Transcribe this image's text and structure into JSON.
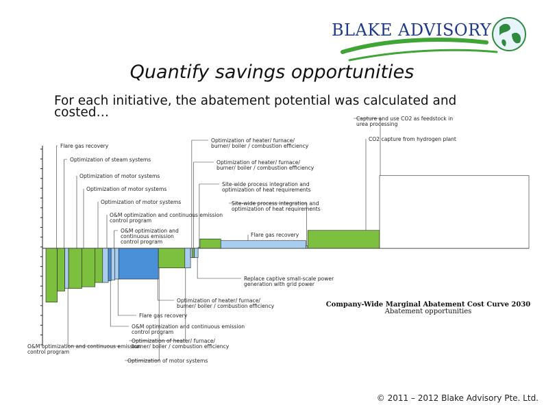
{
  "slide": {
    "title": "Quantify savings opportunities",
    "subtitle": "For each initiative, the abatement potential was calculated and costed…",
    "copyright": "© 2011 – 2012 Blake Advisory Pte. Ltd."
  },
  "logo": {
    "text": "BLAKE ADVISORY",
    "icon": "globe-icon",
    "colors": {
      "text": "#1f3a8a",
      "swoosh": "#3fa535",
      "globe": "#2e8b3d"
    }
  },
  "colors": {
    "green": "#7dbf3f",
    "blue": "#4a90d9",
    "light_blue": "#a9cdee",
    "outline": "#222222"
  },
  "chart_data": {
    "type": "bar",
    "variant": "marginal-abatement-cost-curve",
    "title": "Company-Wide Marginal Abatement Cost Curve 2030",
    "subtitle": "Abatement opportunities",
    "xlabel": "",
    "ylabel": "",
    "ylim": [
      -100,
      100
    ],
    "grid": false,
    "bars": [
      {
        "label": "Flare gas recovery",
        "width": 6,
        "cost": -63,
        "color": "green"
      },
      {
        "label": "Optimization of steam systems",
        "width": 4,
        "cost": -50,
        "color": "green"
      },
      {
        "label": "Optimization of motor systems",
        "width": 2,
        "cost": -47,
        "color": "light_blue"
      },
      {
        "label": "Optimization of motor systems",
        "width": 7,
        "cost": -47,
        "color": "green"
      },
      {
        "label": "Optimization of motor systems",
        "width": 7,
        "cost": -45,
        "color": "green"
      },
      {
        "label": "O&M optimization and continuous emission control program",
        "width": 4,
        "cost": -40,
        "color": "green"
      },
      {
        "label": "O&M optimization and continuous emission control program",
        "width": 3,
        "cost": -40,
        "color": "light_blue"
      },
      {
        "label": "O&M optimization and continuous emission control program",
        "width": 1.5,
        "cost": -38,
        "color": "blue"
      },
      {
        "label": "O&M optimization and continuous emission control program",
        "width": 2,
        "cost": -37,
        "color": "light_blue"
      },
      {
        "label": "Flare gas recovery",
        "width": 2,
        "cost": -36,
        "color": "light_blue"
      },
      {
        "label": "Optimization of heater/ furnace/ burner/ boiler / combustion efficiency",
        "width": 21,
        "cost": -36,
        "color": "blue"
      },
      {
        "label": "Optimization of motor systems",
        "width": 14,
        "cost": -23,
        "color": "green"
      },
      {
        "label": "Optimization of heater/ furnace/ burner/ boiler / combustion efficiency",
        "width": 3,
        "cost": -23,
        "color": "light_blue"
      },
      {
        "label": "Optimization of heater/ furnace/ burner/ boiler / combustion efficiency",
        "width": 1,
        "cost": -11,
        "color": "light_blue"
      },
      {
        "label": "Optimization of heater/ furnace/ burner/ boiler / combustion efficiency",
        "width": 1,
        "cost": -11,
        "color": "green"
      },
      {
        "label": "Replace captive small-scale power generation with grid power",
        "width": 2,
        "cost": -11,
        "color": "light_blue"
      },
      {
        "label": "Site-wide process integration and optimization of heat requirements",
        "width": 1,
        "cost": 1,
        "color": "light_blue"
      },
      {
        "label": "Optimization of heater/ furnace/ burner/ boiler / combustion efficiency",
        "width": 11,
        "cost": 11,
        "color": "green"
      },
      {
        "label": "Flare gas recovery",
        "width": 45,
        "cost": 9,
        "color": "light_blue"
      },
      {
        "label": "Site-wide process integration and optimization of heat requirements",
        "width": 1,
        "cost": 3,
        "color": "light_blue"
      },
      {
        "label": "CO2 capture from hydrogen plant",
        "width": 38,
        "cost": 21,
        "color": "green"
      },
      {
        "label": "Capture and use CO2 as feedstock in urea processing",
        "width": 79,
        "cost": 85,
        "color": "white"
      }
    ],
    "annotations": [
      "Flare gas recovery",
      "Optimization of steam systems",
      "Optimization of motor systems",
      "Optimization of motor systems",
      "Optimization of motor systems",
      "O&M optimization and continuous emission control program",
      "O&M optimization and continuous emission control program",
      "Optimization of heater/ furnace/ burner/ boiler / combustion efficiency",
      "Optimization of heater/ furnace/ burner/ boiler / combustion efficiency",
      "Site-wide process integration and optimization of heat requirements",
      "Site-wide process integration and optimization of heat requirements",
      "Flare gas recovery",
      "Capture and use CO2 as feedstock in urea processing",
      "CO2 capture from hydrogen plant",
      "Replace captive small-scale power generation with grid power",
      "Optimization of heater/ furnace/ burner/ boiler / combustion efficiency",
      "Flare gas recovery",
      "O&M optimization and continuous emission control program",
      "Optimization of heater/ furnace/ burner/ boiler / combustion efficiency",
      "Optimization of motor systems",
      "O&M optimization and continuous emission control program"
    ]
  }
}
